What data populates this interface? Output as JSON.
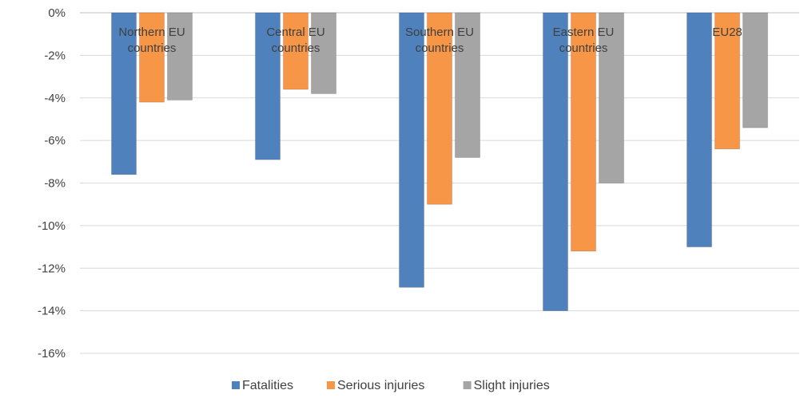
{
  "chart_data": {
    "type": "bar",
    "categories": [
      [
        "Northern EU",
        "countries"
      ],
      [
        "Central EU",
        "countries"
      ],
      [
        "Southern EU",
        "countries"
      ],
      [
        "Eastern EU",
        "countries"
      ],
      [
        "EU28"
      ]
    ],
    "series": [
      {
        "name": "Fatalities",
        "color": "#4f81bd",
        "values": [
          -7.6,
          -6.9,
          -12.9,
          -14.0,
          -11.0
        ]
      },
      {
        "name": "Serious injuries",
        "color": "#f79646",
        "values": [
          -4.2,
          -3.6,
          -9.0,
          -11.2,
          -6.4
        ]
      },
      {
        "name": "Slight injuries",
        "color": "#a5a5a5",
        "values": [
          -4.1,
          -3.8,
          -6.8,
          -8.0,
          -5.4
        ]
      }
    ],
    "ylim": [
      -16,
      0
    ],
    "yticks": [
      0,
      -2,
      -4,
      -6,
      -8,
      -10,
      -12,
      -14,
      -16
    ],
    "ytick_labels": [
      "0%",
      "-2%",
      "-4%",
      "-6%",
      "-8%",
      "-10%",
      "-12%",
      "-14%",
      "-16%"
    ],
    "grid": true,
    "legend_position": "bottom",
    "title": "",
    "xlabel": "",
    "ylabel": ""
  }
}
